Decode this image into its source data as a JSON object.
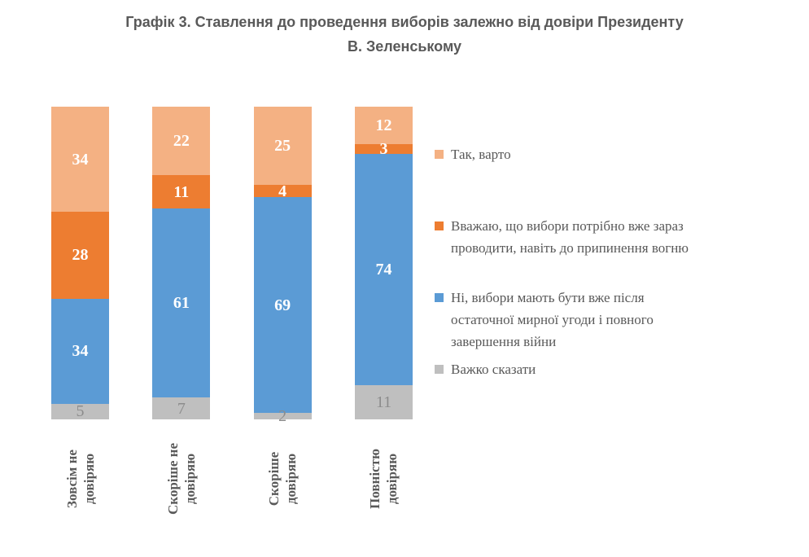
{
  "title": "Графік 3. Ставлення до проведення виборів залежно від довіри Президенту\nВ. Зеленському",
  "colors": {
    "title_text": "#595959",
    "axis_label_text": "#595959",
    "legend_text": "#595959",
    "gray_value_label": "#8C8C8C",
    "white_value_label": "#FFFFFF",
    "background": "#FFFFFF"
  },
  "chart_data": {
    "type": "bar",
    "stacked": true,
    "percent_stacked": true,
    "grid": false,
    "legend_position": "right",
    "title": "Графік 3. Ставлення до проведення виборів залежно від довіри Президенту В. Зеленському",
    "xlabel": "",
    "ylabel": "",
    "categories": [
      "Зовсім не\nдовіряю",
      "Скоріше не\nдовіряю",
      "Скоріше\nдовіряю",
      "Повністю\nдовіряю"
    ],
    "series": [
      {
        "name": "Так, варто",
        "legend_label": "Так, варто",
        "color": "#F4B183",
        "label_color": "#FFFFFF",
        "values": [
          34,
          22,
          25,
          12
        ]
      },
      {
        "name": "Вважаю, що вибори потрібно вже зараз проводити, навіть до припинення вогню",
        "legend_label": "Вважаю, що вибори потрібно вже зараз\nпроводити, навіть до припинення вогню",
        "color": "#ED7D31",
        "label_color": "#FFFFFF",
        "values": [
          28,
          11,
          4,
          3
        ]
      },
      {
        "name": "Ні, вибори мають бути вже після остаточної мирної угоди і повного завершення війни",
        "legend_label": "Ні, вибори мають бути вже після\nостаточної мирної угоди і повного\nзавершення війни",
        "color": "#5B9BD5",
        "label_color": "#FFFFFF",
        "values": [
          34,
          61,
          69,
          74
        ]
      },
      {
        "name": "Важко сказати",
        "legend_label": "Важко сказати",
        "color": "#BFBFBF",
        "label_color": "#8C8C8C",
        "values": [
          5,
          7,
          2,
          11
        ]
      }
    ]
  }
}
